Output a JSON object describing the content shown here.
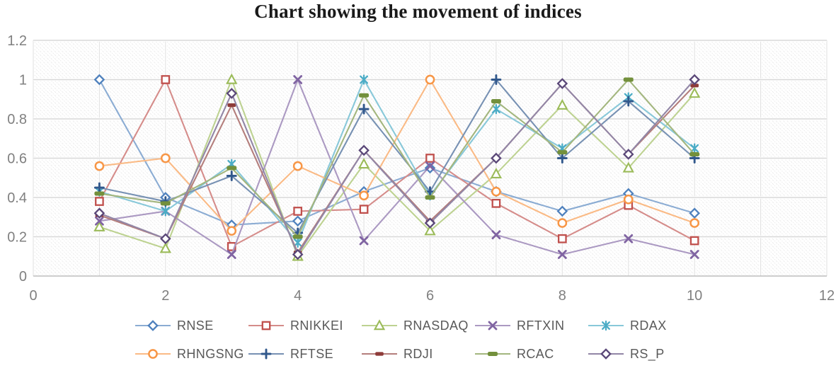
{
  "chart_data": {
    "type": "line",
    "title": "Chart showing the movement of indices",
    "xlabel": "",
    "ylabel": "",
    "xlim": [
      0,
      12
    ],
    "ylim": [
      0,
      1.2
    ],
    "x_tick_labels": [
      "0",
      "2",
      "4",
      "6",
      "8",
      "10",
      "12"
    ],
    "y_tick_labels": [
      "0",
      "0.2",
      "0.4",
      "0.6",
      "0.8",
      "1",
      "1.2"
    ],
    "grid": true,
    "legend_position": "bottom-two-rows",
    "plot_background": "light-diagonal-dotted-hatch",
    "x": [
      1,
      2,
      3,
      4,
      5,
      6,
      7,
      8,
      9,
      10
    ],
    "series": [
      {
        "name": "RNSE",
        "marker": "diamond",
        "color": "#4F81BD",
        "values": [
          1.0,
          0.4,
          0.26,
          0.28,
          0.43,
          0.55,
          0.43,
          0.33,
          0.42,
          0.32
        ]
      },
      {
        "name": "RNIKKEI",
        "marker": "square",
        "color": "#C0504D",
        "values": [
          0.38,
          1.0,
          0.15,
          0.33,
          0.34,
          0.6,
          0.37,
          0.19,
          0.36,
          0.18
        ]
      },
      {
        "name": "RNASDAQ",
        "marker": "triangle",
        "color": "#9BBB59",
        "values": [
          0.25,
          0.14,
          1.0,
          0.1,
          0.57,
          0.23,
          0.52,
          0.87,
          0.55,
          0.93
        ]
      },
      {
        "name": "RFTXIN",
        "marker": "x",
        "color": "#8064A2",
        "values": [
          0.28,
          0.33,
          0.11,
          1.0,
          0.18,
          0.56,
          0.21,
          0.11,
          0.19,
          0.11
        ]
      },
      {
        "name": "RDAX",
        "marker": "asterisk",
        "color": "#4BACC6",
        "values": [
          0.43,
          0.33,
          0.57,
          0.17,
          1.0,
          0.41,
          0.85,
          0.65,
          0.91,
          0.65
        ]
      },
      {
        "name": "RHNGSNG",
        "marker": "circle",
        "color": "#F79646",
        "values": [
          0.56,
          0.6,
          0.23,
          0.56,
          0.41,
          1.0,
          0.43,
          0.27,
          0.39,
          0.27
        ]
      },
      {
        "name": "RFTSE",
        "marker": "plus",
        "color": "#31588C",
        "values": [
          0.45,
          0.38,
          0.51,
          0.22,
          0.85,
          0.43,
          1.0,
          0.6,
          0.89,
          0.6
        ]
      },
      {
        "name": "RDJI",
        "marker": "dash",
        "color": "#8E3B39",
        "values": [
          0.31,
          0.19,
          0.87,
          0.12,
          0.64,
          0.28,
          0.6,
          0.98,
          0.62,
          0.97
        ]
      },
      {
        "name": "RCAC",
        "marker": "long-dash",
        "color": "#73903C",
        "values": [
          0.42,
          0.37,
          0.55,
          0.2,
          0.92,
          0.4,
          0.89,
          0.63,
          1.0,
          0.62
        ]
      },
      {
        "name": "RS_P",
        "marker": "diamond",
        "color": "#5A4778",
        "values": [
          0.32,
          0.19,
          0.93,
          0.11,
          0.64,
          0.27,
          0.6,
          0.98,
          0.62,
          1.0
        ]
      }
    ]
  },
  "styles": {
    "axis_tick_color": "#808080",
    "legend_text_color": "#595959",
    "title_color": "#1A1A1A",
    "gridline_color": "#D8D8D8",
    "axis_line_color": "#BDBDBD",
    "hatch_color": "#E6E6E6"
  }
}
